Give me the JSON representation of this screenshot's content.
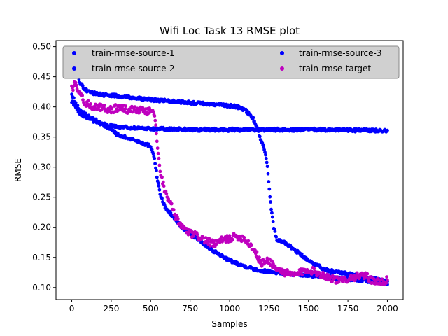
{
  "chart_data": {
    "type": "scatter",
    "title": "Wifi Loc Task 13 RMSE plot",
    "xlabel": "Samples",
    "ylabel": "RMSE",
    "xlim": [
      -100,
      2100
    ],
    "ylim": [
      0.08,
      0.51
    ],
    "xticks": [
      0,
      250,
      500,
      750,
      1000,
      1250,
      1500,
      1750,
      2000
    ],
    "yticks": [
      0.1,
      0.15,
      0.2,
      0.25,
      0.3,
      0.35,
      0.4,
      0.45,
      0.5
    ],
    "xtick_labels": [
      "0",
      "250",
      "500",
      "750",
      "1000",
      "1250",
      "1500",
      "1750",
      "2000"
    ],
    "ytick_labels": [
      "0.10",
      "0.15",
      "0.20",
      "0.25",
      "0.30",
      "0.35",
      "0.40",
      "0.45",
      "0.50"
    ],
    "legend_placement": "top",
    "grid": false,
    "series": [
      {
        "name": "train-rmse-source-1",
        "color": "#0000ff",
        "x": [
          0,
          25,
          50,
          100,
          150,
          200,
          250,
          300,
          400,
          500,
          520,
          540,
          560,
          580,
          600,
          650,
          700,
          800,
          900,
          1000,
          1100,
          1200,
          1300,
          1400,
          1500,
          1600,
          1700,
          1800,
          1900,
          2000
        ],
        "y": [
          0.42,
          0.405,
          0.395,
          0.385,
          0.378,
          0.37,
          0.362,
          0.352,
          0.345,
          0.335,
          0.32,
          0.285,
          0.255,
          0.24,
          0.23,
          0.215,
          0.2,
          0.18,
          0.16,
          0.145,
          0.135,
          0.128,
          0.125,
          0.122,
          0.12,
          0.118,
          0.115,
          0.113,
          0.11,
          0.105
        ]
      },
      {
        "name": "train-rmse-source-2",
        "color": "#0000ff",
        "x": [
          0,
          25,
          50,
          100,
          150,
          200,
          300,
          400,
          500,
          600,
          700,
          800,
          900,
          1000,
          1100,
          1200,
          1300,
          1400,
          1500,
          1600,
          1700,
          1800,
          1900,
          2000
        ],
        "y": [
          0.41,
          0.4,
          0.39,
          0.382,
          0.375,
          0.371,
          0.367,
          0.365,
          0.364,
          0.363,
          0.363,
          0.362,
          0.362,
          0.362,
          0.362,
          0.362,
          0.362,
          0.362,
          0.362,
          0.362,
          0.362,
          0.361,
          0.361,
          0.361
        ]
      },
      {
        "name": "train-rmse-source-3",
        "color": "#0000ff",
        "x": [
          0,
          25,
          50,
          100,
          200,
          300,
          400,
          500,
          600,
          700,
          800,
          900,
          1000,
          1050,
          1100,
          1150,
          1180,
          1200,
          1220,
          1240,
          1260,
          1280,
          1300,
          1350,
          1400,
          1450,
          1500,
          1600,
          1700,
          1800,
          1900,
          2000
        ],
        "y": [
          0.49,
          0.465,
          0.44,
          0.425,
          0.42,
          0.418,
          0.415,
          0.412,
          0.41,
          0.408,
          0.406,
          0.404,
          0.402,
          0.4,
          0.395,
          0.38,
          0.36,
          0.345,
          0.33,
          0.3,
          0.24,
          0.2,
          0.18,
          0.175,
          0.165,
          0.155,
          0.145,
          0.13,
          0.125,
          0.12,
          0.115,
          0.11
        ]
      },
      {
        "name": "train-rmse-target",
        "color": "#bf00bf",
        "x": [
          0,
          25,
          50,
          75,
          100,
          150,
          200,
          250,
          300,
          350,
          400,
          450,
          500,
          525,
          540,
          560,
          580,
          600,
          625,
          650,
          700,
          750,
          800,
          850,
          900,
          950,
          1000,
          1050,
          1100,
          1150,
          1200,
          1250,
          1300,
          1350,
          1400,
          1500,
          1600,
          1650,
          1700,
          1750,
          1800,
          1850,
          1900,
          1950,
          2000
        ],
        "y": [
          0.43,
          0.44,
          0.42,
          0.41,
          0.405,
          0.4,
          0.398,
          0.395,
          0.4,
          0.395,
          0.397,
          0.393,
          0.393,
          0.39,
          0.34,
          0.29,
          0.27,
          0.255,
          0.24,
          0.22,
          0.2,
          0.19,
          0.185,
          0.178,
          0.172,
          0.178,
          0.182,
          0.185,
          0.18,
          0.165,
          0.14,
          0.145,
          0.13,
          0.125,
          0.12,
          0.13,
          0.12,
          0.115,
          0.11,
          0.115,
          0.118,
          0.12,
          0.113,
          0.108,
          0.112
        ]
      }
    ]
  }
}
